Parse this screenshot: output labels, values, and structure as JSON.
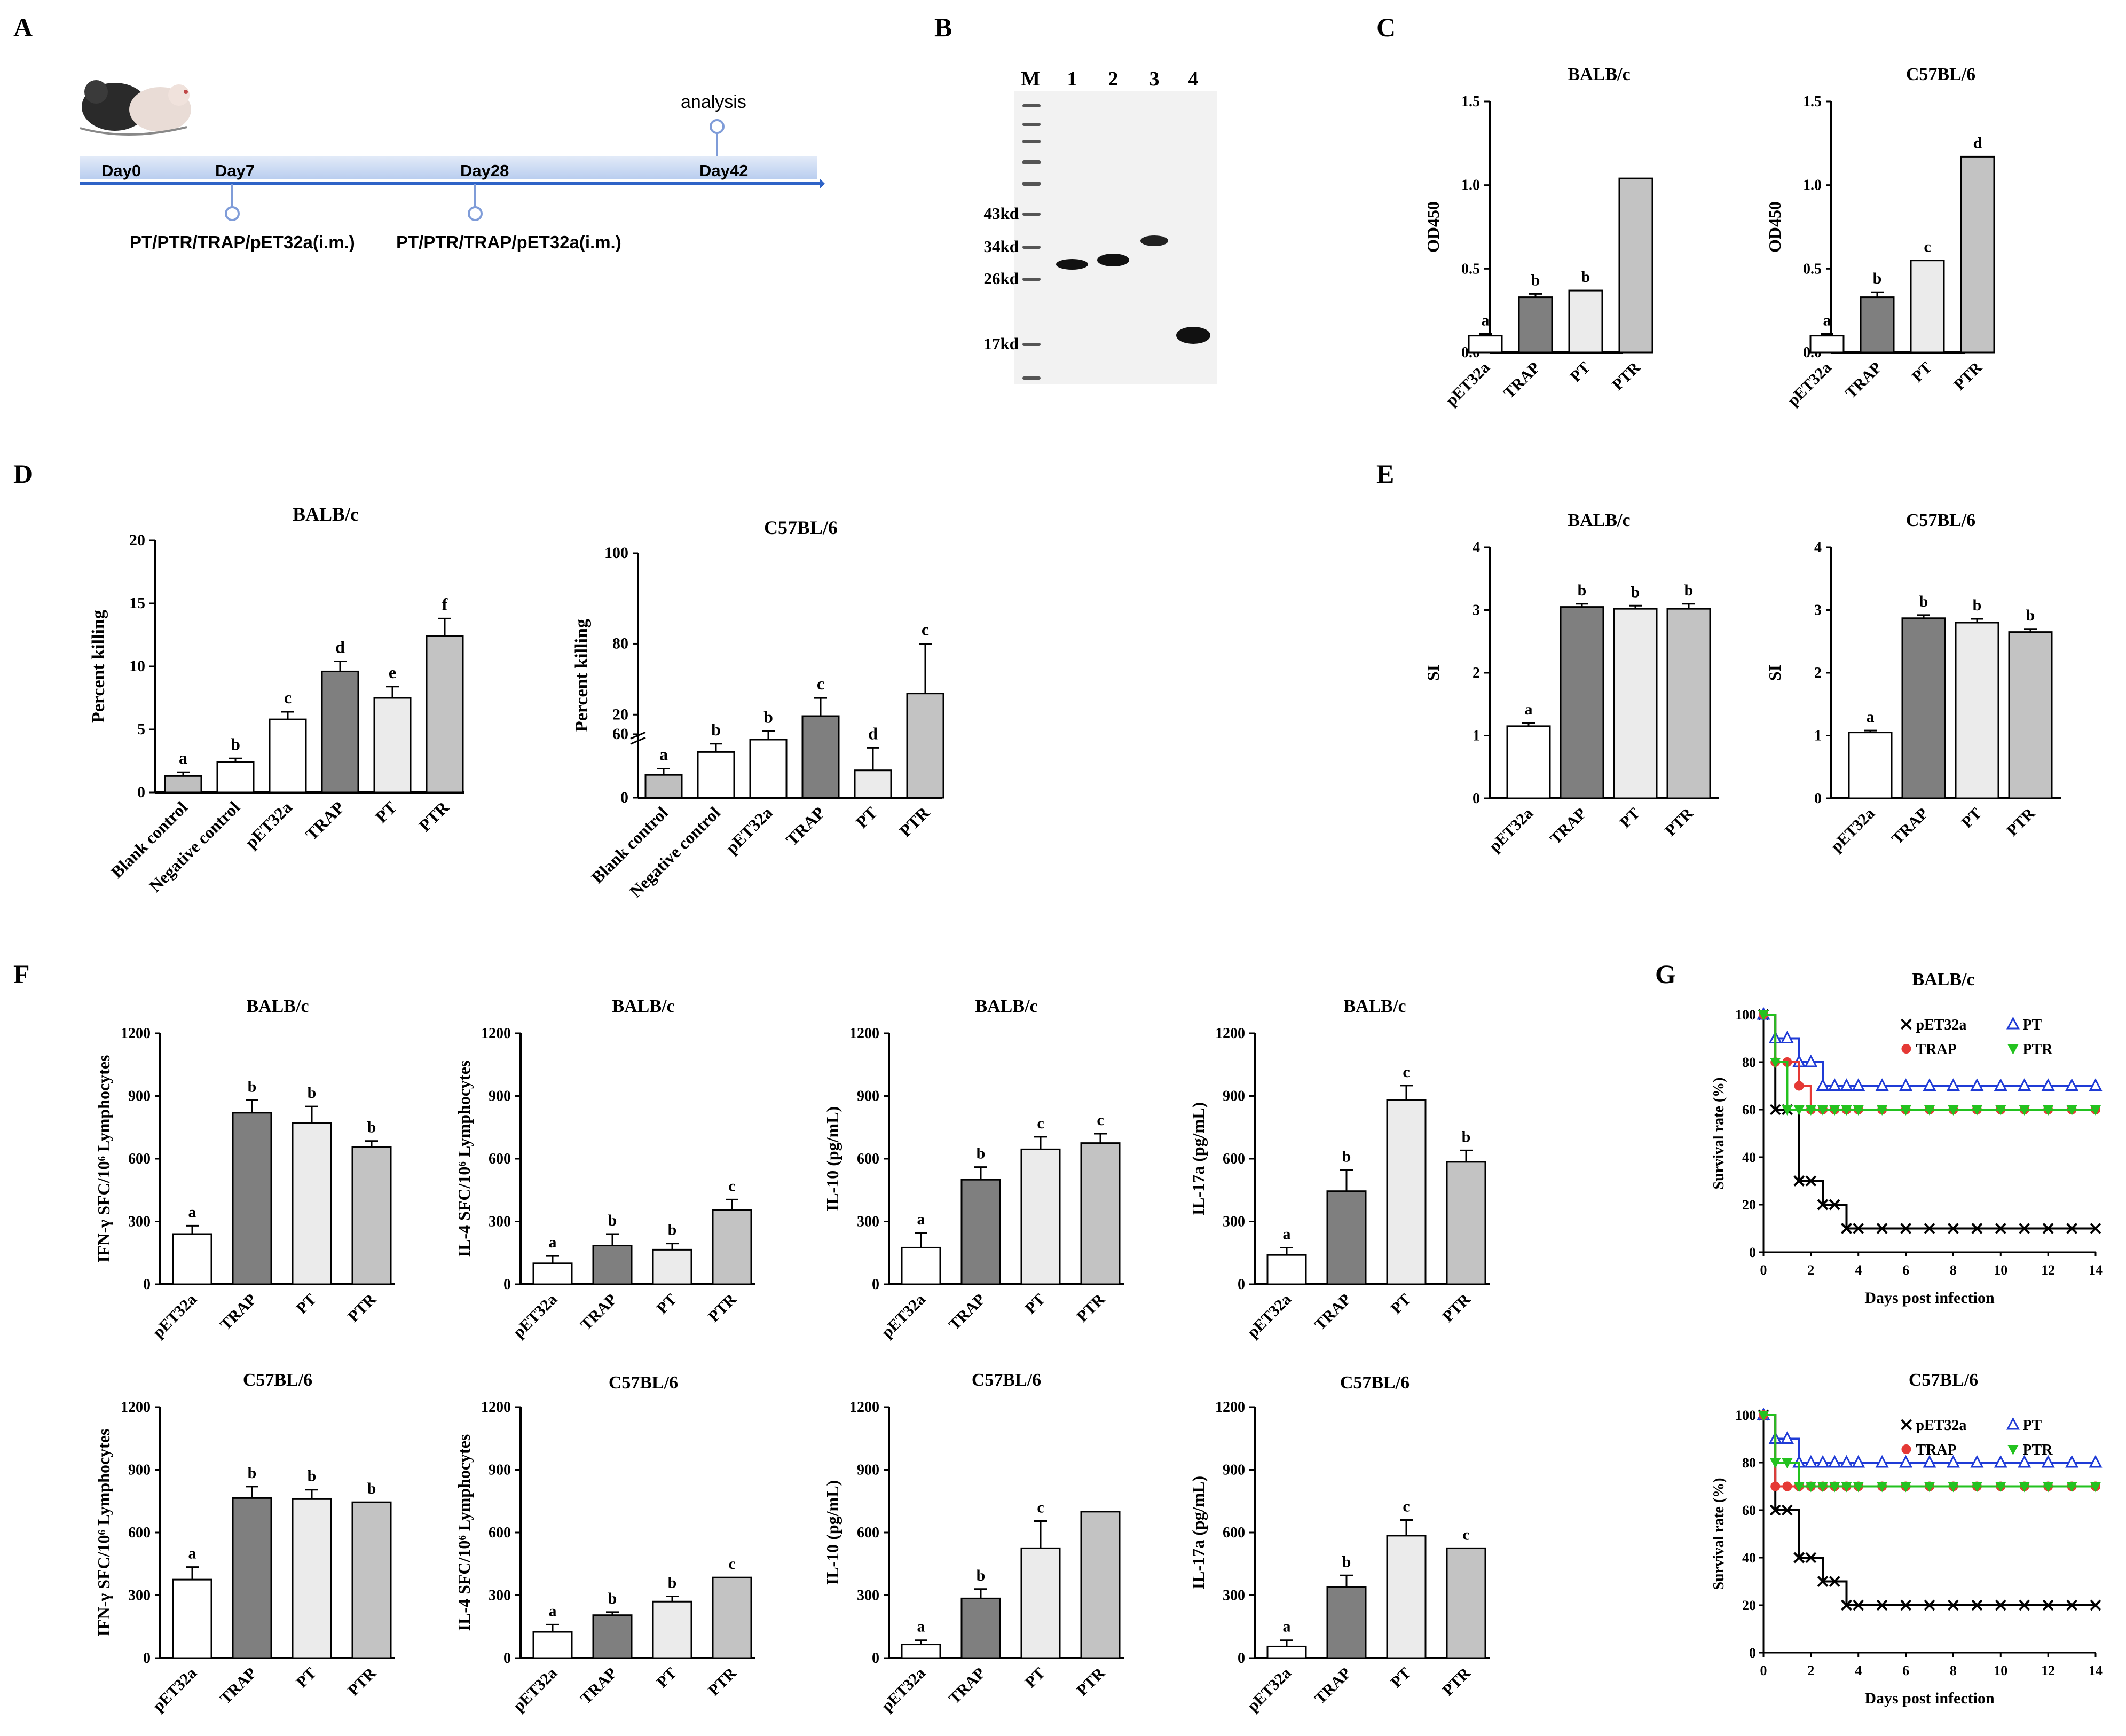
{
  "panels": {
    "A": {
      "letter": "A",
      "days": [
        "Day0",
        "Day7",
        "Day28",
        "Day42"
      ],
      "analysis_label": "analysis",
      "immunization_labels": [
        "PT/PTR/TRAP/pET32a(i.m.)",
        "PT/PTR/TRAP/pET32a(i.m.)"
      ]
    },
    "B": {
      "letter": "B",
      "lane_labels": [
        "M",
        "1",
        "2",
        "3",
        "4"
      ],
      "marker_labels": [
        "43kd",
        "34kd",
        "26kd",
        "17kd"
      ]
    },
    "C": {
      "letter": "C"
    },
    "D": {
      "letter": "D"
    },
    "E": {
      "letter": "E"
    },
    "F": {
      "letter": "F"
    },
    "G": {
      "letter": "G"
    }
  },
  "colors": {
    "pET32a": "#ffffff",
    "TRAP": "#7f7f7f",
    "PT": "#ebebeb",
    "PTR": "#c3c3c3",
    "blank": "#bfbfbf",
    "survival_pET32a": "#000000",
    "survival_PT": "#1f3bd6",
    "survival_TRAP": "#e53935",
    "survival_PTR": "#23c21f"
  },
  "chart_data": [
    {
      "id": "C1",
      "panel": "C",
      "type": "bar",
      "title": "BALB/c",
      "ylabel": "OD450",
      "ylim": [
        0,
        1.5
      ],
      "yticks": [
        0,
        0.5,
        1.0,
        1.5
      ],
      "ytick_labels": [
        "0.0",
        "0.5",
        "1.0",
        "1.5"
      ],
      "categories": [
        "pET32a",
        "TRAP",
        "PT",
        "PTR"
      ],
      "values": [
        0.1,
        0.33,
        0.37,
        1.04
      ],
      "errors": [
        0.01,
        0.02,
        0,
        0
      ],
      "letters": [
        "a",
        "b",
        "b",
        ""
      ]
    },
    {
      "id": "C2",
      "panel": "C",
      "type": "bar",
      "title": "C57BL/6",
      "ylabel": "OD450",
      "ylim": [
        0,
        1.5
      ],
      "yticks": [
        0,
        0.5,
        1.0,
        1.5
      ],
      "ytick_labels": [
        "0.0",
        "0.5",
        "1.0",
        "1.5"
      ],
      "categories": [
        "pET32a",
        "TRAP",
        "PT",
        "PTR"
      ],
      "values": [
        0.1,
        0.33,
        0.55,
        1.17
      ],
      "errors": [
        0.01,
        0.03,
        0,
        0
      ],
      "letters": [
        "a",
        "b",
        "c",
        "d"
      ]
    },
    {
      "id": "D1",
      "panel": "D",
      "type": "bar",
      "title": "BALB/c",
      "ylabel": "Percent killing",
      "ylim": [
        0,
        20
      ],
      "yticks": [
        0,
        5,
        10,
        15,
        20
      ],
      "ytick_labels": [
        "0",
        "5",
        "10",
        "15",
        "20"
      ],
      "categories": [
        "Blank control",
        "Negative control",
        "pET32a",
        "TRAP",
        "PT",
        "PTR"
      ],
      "values": [
        1.3,
        2.4,
        5.8,
        9.6,
        7.5,
        12.4
      ],
      "errors": [
        0.3,
        0.3,
        0.6,
        0.8,
        0.9,
        1.4
      ],
      "letters": [
        "a",
        "b",
        "c",
        "d",
        "e",
        "f"
      ]
    },
    {
      "id": "D2",
      "panel": "D",
      "type": "bar",
      "title": "C57BL/6",
      "ylabel": "Percent killing",
      "ylim": [
        0,
        100
      ],
      "yticks": [
        0,
        20,
        60,
        80,
        100
      ],
      "ytick_labels": [
        "0",
        "20",
        "60",
        "80",
        "100"
      ],
      "categories": [
        "Blank control",
        "Negative control",
        "pET32a",
        "TRAP",
        "PT",
        "PTR"
      ],
      "values": [
        5.5,
        11,
        14,
        64,
        52,
        69
      ],
      "errors": [
        1.5,
        2,
        2,
        4,
        5,
        11
      ],
      "letters": [
        "a",
        "b",
        "b",
        "c",
        "d",
        "c"
      ]
    },
    {
      "id": "E1",
      "panel": "E",
      "type": "bar",
      "title": "BALB/c",
      "ylabel": "SI",
      "ylim": [
        0,
        4
      ],
      "yticks": [
        0,
        1,
        2,
        3,
        4
      ],
      "ytick_labels": [
        "0",
        "1",
        "2",
        "3",
        "4"
      ],
      "categories": [
        "pET32a",
        "TRAP",
        "PT",
        "PTR"
      ],
      "values": [
        1.15,
        3.05,
        3.02,
        3.02
      ],
      "errors": [
        0.05,
        0.05,
        0.05,
        0.08
      ],
      "letters": [
        "a",
        "b",
        "b",
        "b"
      ]
    },
    {
      "id": "E2",
      "panel": "E",
      "type": "bar",
      "title": "C57BL/6",
      "ylabel": "SI",
      "ylim": [
        0,
        4
      ],
      "yticks": [
        0,
        1,
        2,
        3,
        4
      ],
      "ytick_labels": [
        "0",
        "1",
        "2",
        "3",
        "4"
      ],
      "categories": [
        "pET32a",
        "TRAP",
        "PT",
        "PTR"
      ],
      "values": [
        1.05,
        2.87,
        2.8,
        2.65
      ],
      "errors": [
        0.03,
        0.05,
        0.06,
        0.05
      ],
      "letters": [
        "a",
        "b",
        "b",
        "b"
      ]
    },
    {
      "id": "F1",
      "panel": "F",
      "type": "bar",
      "title": "BALB/c",
      "ylabel": "IFN-γ SFC/10⁶ Lymphocytes",
      "ylim": [
        0,
        1200
      ],
      "yticks": [
        0,
        300,
        600,
        900,
        1200
      ],
      "ytick_labels": [
        "0",
        "300",
        "600",
        "900",
        "1200"
      ],
      "categories": [
        "pET32a",
        "TRAP",
        "PT",
        "PTR"
      ],
      "values": [
        240,
        820,
        770,
        655
      ],
      "errors": [
        40,
        60,
        80,
        30
      ],
      "letters": [
        "a",
        "b",
        "b",
        "b"
      ]
    },
    {
      "id": "F2",
      "panel": "F",
      "type": "bar",
      "title": "BALB/c",
      "ylabel": "IL-4 SFC/10⁶ Lymphocytes",
      "ylim": [
        0,
        1200
      ],
      "yticks": [
        0,
        300,
        600,
        900,
        1200
      ],
      "ytick_labels": [
        "0",
        "300",
        "600",
        "900",
        "1200"
      ],
      "categories": [
        "pET32a",
        "TRAP",
        "PT",
        "PTR"
      ],
      "values": [
        100,
        185,
        165,
        355
      ],
      "errors": [
        35,
        55,
        30,
        50
      ],
      "letters": [
        "a",
        "b",
        "b",
        "c"
      ]
    },
    {
      "id": "F3",
      "panel": "F",
      "type": "bar",
      "title": "BALB/c",
      "ylabel": "IL-10 (pg/mL)",
      "ylim": [
        0,
        1200
      ],
      "yticks": [
        0,
        300,
        600,
        900,
        1200
      ],
      "ytick_labels": [
        "0",
        "300",
        "600",
        "900",
        "1200"
      ],
      "categories": [
        "pET32a",
        "TRAP",
        "PT",
        "PTR"
      ],
      "values": [
        175,
        500,
        645,
        675
      ],
      "errors": [
        70,
        60,
        60,
        45
      ],
      "letters": [
        "a",
        "b",
        "c",
        "c"
      ]
    },
    {
      "id": "F4",
      "panel": "F",
      "type": "bar",
      "title": "BALB/c",
      "ylabel": "IL-17a (pg/mL)",
      "ylim": [
        0,
        1200
      ],
      "yticks": [
        0,
        300,
        600,
        900,
        1200
      ],
      "ytick_labels": [
        "0",
        "300",
        "600",
        "900",
        "1200"
      ],
      "categories": [
        "pET32a",
        "TRAP",
        "PT",
        "PTR"
      ],
      "values": [
        140,
        445,
        880,
        585
      ],
      "errors": [
        35,
        100,
        70,
        55
      ],
      "letters": [
        "a",
        "b",
        "c",
        "b"
      ]
    },
    {
      "id": "F5",
      "panel": "F",
      "type": "bar",
      "title": "C57BL/6",
      "ylabel": "IFN-γ SFC/10⁶ Lymphocytes",
      "ylim": [
        0,
        1200
      ],
      "yticks": [
        0,
        300,
        600,
        900,
        1200
      ],
      "ytick_labels": [
        "0",
        "300",
        "600",
        "900",
        "1200"
      ],
      "categories": [
        "pET32a",
        "TRAP",
        "PT",
        "PTR"
      ],
      "values": [
        375,
        765,
        760,
        745
      ],
      "errors": [
        60,
        55,
        45,
        0
      ],
      "letters": [
        "a",
        "b",
        "b",
        "b"
      ]
    },
    {
      "id": "F6",
      "panel": "F",
      "type": "bar",
      "title": "C57BL/6",
      "ylabel": "IL-4 SFC/10⁶ Lymphocytes",
      "ylim": [
        0,
        1200
      ],
      "yticks": [
        0,
        300,
        600,
        900,
        1200
      ],
      "ytick_labels": [
        "0",
        "300",
        "600",
        "900",
        "1200"
      ],
      "categories": [
        "pET32a",
        "TRAP",
        "PT",
        "PTR"
      ],
      "values": [
        125,
        205,
        270,
        385
      ],
      "errors": [
        35,
        15,
        25,
        0
      ],
      "letters": [
        "a",
        "b",
        "b",
        "c"
      ]
    },
    {
      "id": "F7",
      "panel": "F",
      "type": "bar",
      "title": "C57BL/6",
      "ylabel": "IL-10 (pg/mL)",
      "ylim": [
        0,
        1200
      ],
      "yticks": [
        0,
        300,
        600,
        900,
        1200
      ],
      "ytick_labels": [
        "0",
        "300",
        "600",
        "900",
        "1200"
      ],
      "categories": [
        "pET32a",
        "TRAP",
        "PT",
        "PTR"
      ],
      "values": [
        65,
        285,
        525,
        700
      ],
      "errors": [
        20,
        45,
        130,
        0
      ],
      "letters": [
        "a",
        "b",
        "c",
        ""
      ]
    },
    {
      "id": "F8",
      "panel": "F",
      "type": "bar",
      "title": "C57BL/6",
      "ylabel": "IL-17a (pg/mL)",
      "ylim": [
        0,
        1200
      ],
      "yticks": [
        0,
        300,
        600,
        900,
        1200
      ],
      "ytick_labels": [
        "0",
        "300",
        "600",
        "900",
        "1200"
      ],
      "categories": [
        "pET32a",
        "TRAP",
        "PT",
        "PTR"
      ],
      "values": [
        55,
        340,
        585,
        525
      ],
      "errors": [
        30,
        55,
        75,
        0
      ],
      "letters": [
        "a",
        "b",
        "c",
        "c"
      ]
    },
    {
      "id": "G1",
      "panel": "G",
      "type": "line",
      "title": "BALB/c",
      "xlabel": "Days post infection",
      "ylabel": "Survival rate (%)",
      "xlim": [
        0,
        14
      ],
      "ylim": [
        0,
        100
      ],
      "xticks": [
        0,
        2,
        4,
        6,
        8,
        10,
        12,
        14
      ],
      "yticks": [
        0,
        20,
        40,
        60,
        80,
        100
      ],
      "series": [
        {
          "name": "pET32a",
          "marker": "x",
          "x": [
            0,
            0.5,
            1,
            1.5,
            2,
            2.5,
            3,
            3.5,
            4,
            5,
            6,
            7,
            8,
            9,
            10,
            11,
            12,
            13,
            14
          ],
          "y": [
            100,
            60,
            60,
            30,
            30,
            20,
            20,
            10,
            10,
            10,
            10,
            10,
            10,
            10,
            10,
            10,
            10,
            10,
            10
          ]
        },
        {
          "name": "PT",
          "marker": "tri-up",
          "x": [
            0,
            0.5,
            1,
            1.5,
            2,
            2.5,
            3,
            3.5,
            4,
            5,
            6,
            7,
            8,
            9,
            10,
            11,
            12,
            13,
            14
          ],
          "y": [
            100,
            90,
            90,
            80,
            80,
            70,
            70,
            70,
            70,
            70,
            70,
            70,
            70,
            70,
            70,
            70,
            70,
            70,
            70
          ]
        },
        {
          "name": "TRAP",
          "marker": "circle",
          "x": [
            0,
            0.5,
            1,
            1.5,
            2,
            2.5,
            3,
            3.5,
            4,
            5,
            6,
            7,
            8,
            9,
            10,
            11,
            12,
            13,
            14
          ],
          "y": [
            100,
            80,
            80,
            70,
            60,
            60,
            60,
            60,
            60,
            60,
            60,
            60,
            60,
            60,
            60,
            60,
            60,
            60,
            60
          ]
        },
        {
          "name": "PTR",
          "marker": "tri-down",
          "x": [
            0,
            0.5,
            1,
            1.5,
            2,
            2.5,
            3,
            3.5,
            4,
            5,
            6,
            7,
            8,
            9,
            10,
            11,
            12,
            13,
            14
          ],
          "y": [
            100,
            80,
            60,
            60,
            60,
            60,
            60,
            60,
            60,
            60,
            60,
            60,
            60,
            60,
            60,
            60,
            60,
            60,
            60
          ]
        }
      ]
    },
    {
      "id": "G2",
      "panel": "G",
      "type": "line",
      "title": "C57BL/6",
      "xlabel": "Days post infection",
      "ylabel": "Survival rate (%)",
      "xlim": [
        0,
        14
      ],
      "ylim": [
        0,
        100
      ],
      "xticks": [
        0,
        2,
        4,
        6,
        8,
        10,
        12,
        14
      ],
      "yticks": [
        0,
        20,
        40,
        60,
        80,
        100
      ],
      "series": [
        {
          "name": "pET32a",
          "marker": "x",
          "x": [
            0,
            0.5,
            1,
            1.5,
            2,
            2.5,
            3,
            3.5,
            4,
            5,
            6,
            7,
            8,
            9,
            10,
            11,
            12,
            13,
            14
          ],
          "y": [
            100,
            60,
            60,
            40,
            40,
            30,
            30,
            20,
            20,
            20,
            20,
            20,
            20,
            20,
            20,
            20,
            20,
            20,
            20
          ]
        },
        {
          "name": "PT",
          "marker": "tri-up",
          "x": [
            0,
            0.5,
            1,
            1.5,
            2,
            2.5,
            3,
            3.5,
            4,
            5,
            6,
            7,
            8,
            9,
            10,
            11,
            12,
            13,
            14
          ],
          "y": [
            100,
            90,
            90,
            80,
            80,
            80,
            80,
            80,
            80,
            80,
            80,
            80,
            80,
            80,
            80,
            80,
            80,
            80,
            80
          ]
        },
        {
          "name": "TRAP",
          "marker": "circle",
          "x": [
            0,
            0.5,
            1,
            1.5,
            2,
            2.5,
            3,
            3.5,
            4,
            5,
            6,
            7,
            8,
            9,
            10,
            11,
            12,
            13,
            14
          ],
          "y": [
            100,
            70,
            70,
            70,
            70,
            70,
            70,
            70,
            70,
            70,
            70,
            70,
            70,
            70,
            70,
            70,
            70,
            70,
            70
          ]
        },
        {
          "name": "PTR",
          "marker": "tri-down",
          "x": [
            0,
            0.5,
            1,
            1.5,
            2,
            2.5,
            3,
            3.5,
            4,
            5,
            6,
            7,
            8,
            9,
            10,
            11,
            12,
            13,
            14
          ],
          "y": [
            100,
            80,
            80,
            70,
            70,
            70,
            70,
            70,
            70,
            70,
            70,
            70,
            70,
            70,
            70,
            70,
            70,
            70,
            70
          ]
        }
      ]
    }
  ]
}
